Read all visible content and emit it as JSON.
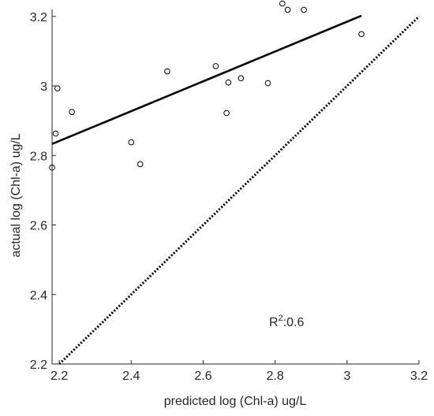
{
  "chart_data": {
    "type": "scatter",
    "xlabel": "predicted log (Chl-a) ug/L",
    "ylabel": "actual  log (Chl-a) ug/L",
    "xlim": [
      2.18,
      3.2
    ],
    "ylim": [
      2.2,
      3.22
    ],
    "xticks": [
      2.2,
      2.4,
      2.6,
      2.8,
      3.0,
      3.2
    ],
    "xtick_labels": [
      "2.2",
      "2.4",
      "2.6",
      "2.8",
      "3",
      "3.2"
    ],
    "yticks": [
      2.2,
      2.4,
      2.6,
      2.8,
      3.0,
      3.2
    ],
    "ytick_labels": [
      "2.2",
      "2.4",
      "2.6",
      "2.8",
      "3",
      "3.2"
    ],
    "grid": false,
    "points": [
      {
        "x": 2.18,
        "y": 2.765
      },
      {
        "x": 2.19,
        "y": 2.863
      },
      {
        "x": 2.195,
        "y": 2.993
      },
      {
        "x": 2.235,
        "y": 2.925
      },
      {
        "x": 2.4,
        "y": 2.838
      },
      {
        "x": 2.425,
        "y": 2.775
      },
      {
        "x": 2.5,
        "y": 3.042
      },
      {
        "x": 2.635,
        "y": 3.057
      },
      {
        "x": 2.665,
        "y": 2.922
      },
      {
        "x": 2.67,
        "y": 3.01
      },
      {
        "x": 2.705,
        "y": 3.022
      },
      {
        "x": 2.78,
        "y": 3.008
      },
      {
        "x": 2.82,
        "y": 3.237
      },
      {
        "x": 2.835,
        "y": 3.219
      },
      {
        "x": 2.88,
        "y": 3.219
      },
      {
        "x": 3.04,
        "y": 3.149
      }
    ],
    "fit_line": {
      "x": [
        2.18,
        3.04
      ],
      "y": [
        2.833,
        3.202
      ]
    },
    "identity_line": {
      "x": [
        2.2,
        3.2
      ],
      "y": [
        2.2,
        3.2
      ],
      "style": "dotted"
    },
    "annotation": {
      "base": "R",
      "sup": "2",
      "text": ":0.6"
    }
  }
}
